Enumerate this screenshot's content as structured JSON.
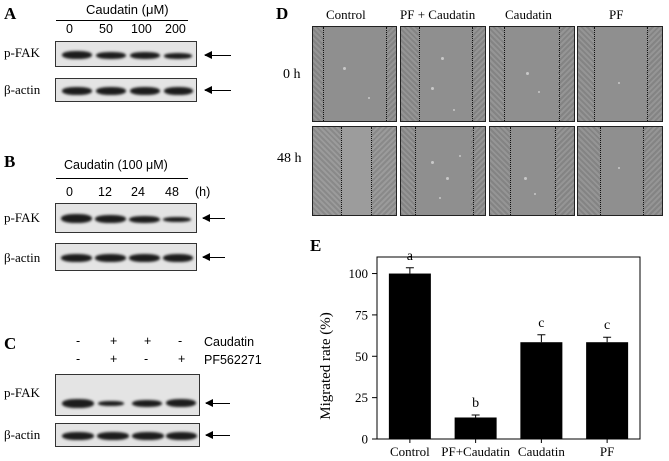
{
  "panel_a": {
    "letter": "A",
    "treatment": "Caudatin (μM)",
    "doses": [
      "0",
      "50",
      "100",
      "200"
    ],
    "rows": [
      "p-FAK",
      "β-actin"
    ]
  },
  "panel_b": {
    "letter": "B",
    "treatment": "Caudatin (100 μM)",
    "times": [
      "0",
      "12",
      "24",
      "48"
    ],
    "unit": "(h)",
    "rows": [
      "p-FAK",
      "β-actin"
    ]
  },
  "panel_c": {
    "letter": "C",
    "row1_signs": [
      "-",
      "+",
      "+",
      "-"
    ],
    "row1_label": "Caudatin",
    "row2_signs": [
      "-",
      "+",
      "-",
      "+"
    ],
    "row2_label": "PF562271",
    "rows": [
      "p-FAK",
      "β-actin"
    ]
  },
  "panel_d": {
    "letter": "D",
    "columns": [
      "Control",
      "PF + Caudatin",
      "Caudatin",
      "PF"
    ],
    "times": [
      "0 h",
      "48 h"
    ]
  },
  "panel_e": {
    "letter": "E",
    "chart_data": {
      "type": "bar",
      "categories": [
        "Control",
        "PF+Caudatin",
        "Caudatin",
        "PF"
      ],
      "values": [
        100,
        13,
        58.5,
        58.5
      ],
      "errors": [
        3.5,
        1.5,
        4.5,
        3
      ],
      "significance": [
        "a",
        "b",
        "c",
        "c"
      ],
      "ylabel": "Migrated rate (%)",
      "xlabel": "",
      "ylim": [
        0,
        110
      ],
      "yticks": [
        "0",
        "25",
        "50",
        "75",
        "100"
      ],
      "bar_color": "#000000"
    }
  }
}
